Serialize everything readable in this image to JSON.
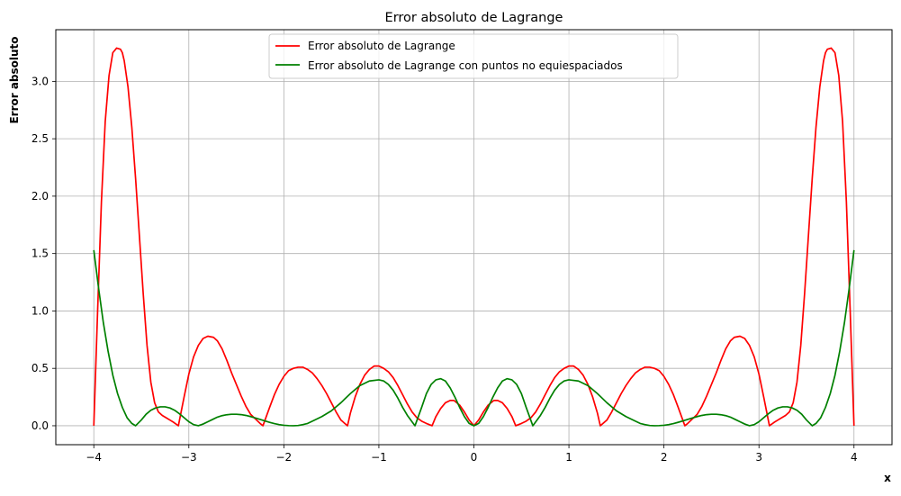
{
  "chart_data": {
    "type": "line",
    "title": "Error absoluto de Lagrange",
    "xlabel": "x",
    "ylabel": "Error absoluto",
    "xlim": [
      -4.4,
      4.4
    ],
    "ylim": [
      -0.165,
      3.45
    ],
    "xticks": [
      -4,
      -3,
      -2,
      -1,
      0,
      1,
      2,
      3,
      4
    ],
    "xtick_labels": [
      "−4",
      "−3",
      "−2",
      "−1",
      "0",
      "1",
      "2",
      "3",
      "4"
    ],
    "yticks": [
      0,
      0.5,
      1,
      1.5,
      2,
      2.5,
      3
    ],
    "ytick_labels": [
      "0.0",
      "0.5",
      "1.0",
      "1.5",
      "2.0",
      "2.5",
      "3.0"
    ],
    "grid": true,
    "legend_position": "upper center",
    "series": [
      {
        "name": "Error absoluto de Lagrange",
        "color": "#ff0000",
        "x": [
          -4.0,
          -3.96,
          -3.92,
          -3.88,
          -3.84,
          -3.8,
          -3.76,
          -3.72,
          -3.7,
          -3.68,
          -3.64,
          -3.6,
          -3.56,
          -3.52,
          -3.48,
          -3.44,
          -3.4,
          -3.36,
          -3.32,
          -3.28,
          -3.24,
          -3.2,
          -3.16,
          -3.11,
          -3.05,
          -3.0,
          -2.95,
          -2.9,
          -2.85,
          -2.8,
          -2.74,
          -2.7,
          -2.65,
          -2.6,
          -2.55,
          -2.5,
          -2.45,
          -2.4,
          -2.35,
          -2.3,
          -2.25,
          -2.22,
          -2.15,
          -2.1,
          -2.05,
          -2.0,
          -1.95,
          -1.9,
          -1.85,
          -1.8,
          -1.75,
          -1.7,
          -1.65,
          -1.6,
          -1.55,
          -1.5,
          -1.45,
          -1.4,
          -1.33,
          -1.3,
          -1.25,
          -1.2,
          -1.15,
          -1.1,
          -1.05,
          -1.0,
          -0.95,
          -0.9,
          -0.85,
          -0.8,
          -0.75,
          -0.7,
          -0.65,
          -0.6,
          -0.55,
          -0.5,
          -0.44,
          -0.4,
          -0.35,
          -0.3,
          -0.25,
          -0.21,
          -0.15,
          -0.1,
          -0.05,
          0.0,
          0.05,
          0.1,
          0.15,
          0.21,
          0.25,
          0.3,
          0.35,
          0.4,
          0.44,
          0.5,
          0.55,
          0.6,
          0.65,
          0.7,
          0.75,
          0.8,
          0.85,
          0.9,
          0.95,
          1.0,
          1.05,
          1.1,
          1.15,
          1.2,
          1.25,
          1.3,
          1.33,
          1.4,
          1.45,
          1.5,
          1.55,
          1.6,
          1.65,
          1.7,
          1.75,
          1.8,
          1.85,
          1.9,
          1.95,
          2.0,
          2.05,
          2.1,
          2.15,
          2.22,
          2.25,
          2.3,
          2.35,
          2.4,
          2.45,
          2.5,
          2.55,
          2.6,
          2.65,
          2.7,
          2.74,
          2.8,
          2.85,
          2.9,
          2.95,
          3.0,
          3.05,
          3.11,
          3.16,
          3.2,
          3.24,
          3.28,
          3.32,
          3.36,
          3.4,
          3.44,
          3.48,
          3.52,
          3.56,
          3.6,
          3.64,
          3.68,
          3.7,
          3.72,
          3.76,
          3.8,
          3.84,
          3.88,
          3.92,
          3.96,
          4.0
        ],
        "y": [
          0.0,
          1.0,
          1.95,
          2.65,
          3.05,
          3.25,
          3.29,
          3.28,
          3.25,
          3.18,
          2.95,
          2.6,
          2.15,
          1.65,
          1.15,
          0.7,
          0.38,
          0.2,
          0.12,
          0.09,
          0.07,
          0.05,
          0.03,
          0.0,
          0.25,
          0.45,
          0.6,
          0.7,
          0.76,
          0.78,
          0.77,
          0.74,
          0.67,
          0.57,
          0.46,
          0.36,
          0.26,
          0.17,
          0.1,
          0.06,
          0.02,
          0.0,
          0.16,
          0.27,
          0.36,
          0.43,
          0.48,
          0.5,
          0.51,
          0.51,
          0.49,
          0.46,
          0.41,
          0.35,
          0.28,
          0.2,
          0.12,
          0.05,
          0.0,
          0.11,
          0.25,
          0.36,
          0.44,
          0.49,
          0.52,
          0.52,
          0.5,
          0.47,
          0.42,
          0.35,
          0.27,
          0.19,
          0.12,
          0.07,
          0.04,
          0.02,
          0.0,
          0.08,
          0.15,
          0.2,
          0.22,
          0.22,
          0.18,
          0.12,
          0.05,
          0.0,
          0.05,
          0.12,
          0.18,
          0.22,
          0.22,
          0.2,
          0.15,
          0.08,
          0.0,
          0.02,
          0.04,
          0.07,
          0.12,
          0.19,
          0.27,
          0.35,
          0.42,
          0.47,
          0.5,
          0.52,
          0.52,
          0.49,
          0.44,
          0.36,
          0.25,
          0.11,
          0.0,
          0.05,
          0.12,
          0.2,
          0.28,
          0.35,
          0.41,
          0.46,
          0.49,
          0.51,
          0.51,
          0.5,
          0.48,
          0.43,
          0.36,
          0.27,
          0.16,
          0.0,
          0.02,
          0.06,
          0.1,
          0.17,
          0.26,
          0.36,
          0.46,
          0.57,
          0.67,
          0.74,
          0.77,
          0.78,
          0.76,
          0.7,
          0.6,
          0.45,
          0.25,
          0.0,
          0.03,
          0.05,
          0.07,
          0.09,
          0.12,
          0.2,
          0.38,
          0.7,
          1.15,
          1.65,
          2.15,
          2.6,
          2.95,
          3.18,
          3.25,
          3.28,
          3.29,
          3.25,
          3.05,
          2.65,
          1.95,
          1.0,
          0.0
        ]
      },
      {
        "name": "Error absoluto de Lagrange con puntos no equiespaciados",
        "color": "#008000",
        "x": [
          -4.0,
          -3.95,
          -3.9,
          -3.85,
          -3.8,
          -3.75,
          -3.7,
          -3.65,
          -3.6,
          -3.56,
          -3.5,
          -3.45,
          -3.4,
          -3.35,
          -3.3,
          -3.25,
          -3.2,
          -3.15,
          -3.1,
          -3.05,
          -3.0,
          -2.95,
          -2.9,
          -2.85,
          -2.8,
          -2.75,
          -2.7,
          -2.65,
          -2.6,
          -2.55,
          -2.5,
          -2.45,
          -2.4,
          -2.35,
          -2.3,
          -2.25,
          -2.2,
          -2.15,
          -2.1,
          -2.05,
          -2.0,
          -1.95,
          -1.9,
          -1.85,
          -1.8,
          -1.75,
          -1.7,
          -1.6,
          -1.5,
          -1.4,
          -1.3,
          -1.2,
          -1.1,
          -1.0,
          -0.95,
          -0.9,
          -0.85,
          -0.8,
          -0.75,
          -0.7,
          -0.62,
          -0.55,
          -0.5,
          -0.45,
          -0.4,
          -0.35,
          -0.3,
          -0.25,
          -0.2,
          -0.15,
          -0.1,
          -0.05,
          0.0,
          0.05,
          0.1,
          0.15,
          0.2,
          0.25,
          0.3,
          0.35,
          0.4,
          0.45,
          0.5,
          0.55,
          0.62,
          0.7,
          0.75,
          0.8,
          0.85,
          0.9,
          0.95,
          1.0,
          1.1,
          1.2,
          1.3,
          1.4,
          1.5,
          1.6,
          1.7,
          1.75,
          1.8,
          1.85,
          1.9,
          1.95,
          2.0,
          2.05,
          2.1,
          2.15,
          2.2,
          2.25,
          2.3,
          2.35,
          2.4,
          2.45,
          2.5,
          2.55,
          2.6,
          2.65,
          2.7,
          2.75,
          2.8,
          2.85,
          2.9,
          2.95,
          3.0,
          3.05,
          3.1,
          3.15,
          3.2,
          3.25,
          3.3,
          3.35,
          3.4,
          3.45,
          3.5,
          3.56,
          3.6,
          3.65,
          3.7,
          3.75,
          3.8,
          3.85,
          3.9,
          3.95,
          4.0
        ],
        "y": [
          1.53,
          1.2,
          0.9,
          0.65,
          0.44,
          0.28,
          0.16,
          0.07,
          0.02,
          0.0,
          0.05,
          0.1,
          0.135,
          0.155,
          0.165,
          0.165,
          0.155,
          0.135,
          0.105,
          0.07,
          0.035,
          0.01,
          0.0,
          0.015,
          0.035,
          0.055,
          0.075,
          0.088,
          0.096,
          0.1,
          0.1,
          0.097,
          0.09,
          0.08,
          0.068,
          0.055,
          0.042,
          0.03,
          0.019,
          0.01,
          0.004,
          0.001,
          0.0,
          0.002,
          0.01,
          0.02,
          0.04,
          0.08,
          0.13,
          0.2,
          0.28,
          0.35,
          0.39,
          0.4,
          0.39,
          0.36,
          0.31,
          0.24,
          0.16,
          0.09,
          0.0,
          0.16,
          0.28,
          0.36,
          0.4,
          0.41,
          0.39,
          0.33,
          0.25,
          0.16,
          0.08,
          0.02,
          0.0,
          0.02,
          0.08,
          0.16,
          0.25,
          0.33,
          0.39,
          0.41,
          0.4,
          0.36,
          0.28,
          0.16,
          0.0,
          0.09,
          0.16,
          0.24,
          0.31,
          0.36,
          0.39,
          0.4,
          0.39,
          0.35,
          0.28,
          0.2,
          0.13,
          0.08,
          0.04,
          0.02,
          0.01,
          0.002,
          0.0,
          0.001,
          0.004,
          0.01,
          0.019,
          0.03,
          0.042,
          0.055,
          0.068,
          0.08,
          0.09,
          0.097,
          0.1,
          0.1,
          0.096,
          0.088,
          0.075,
          0.055,
          0.035,
          0.015,
          0.0,
          0.01,
          0.035,
          0.07,
          0.105,
          0.135,
          0.155,
          0.165,
          0.165,
          0.155,
          0.135,
          0.1,
          0.05,
          0.0,
          0.02,
          0.07,
          0.16,
          0.28,
          0.44,
          0.65,
          0.9,
          1.2,
          1.53
        ]
      }
    ]
  }
}
